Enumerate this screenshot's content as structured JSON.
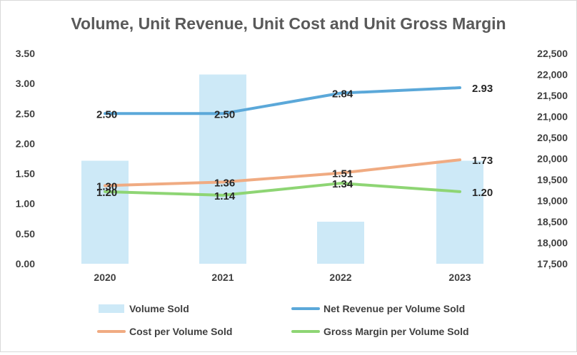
{
  "chart_data": {
    "type": "bar",
    "title": "Volume, Unit Revenue, Unit Cost and Unit Gross Margin",
    "categories": [
      "2020",
      "2021",
      "2022",
      "2023"
    ],
    "left_axis": {
      "ylim": [
        0,
        3.5
      ],
      "ticks": [
        "0.00",
        "0.50",
        "1.00",
        "1.50",
        "2.00",
        "2.50",
        "3.00",
        "3.50"
      ]
    },
    "right_axis": {
      "ylim": [
        17500,
        22500
      ],
      "ticks": [
        "17,500",
        "18,000",
        "18,500",
        "19,000",
        "19,500",
        "20,000",
        "20,500",
        "21,000",
        "21,500",
        "22,000",
        "22,500"
      ]
    },
    "series": [
      {
        "name": "Volume Sold",
        "kind": "bar",
        "axis": "right",
        "color": "#cde9f7",
        "values": [
          19950,
          22000,
          18500,
          19950
        ]
      },
      {
        "name": "Net Revenue per Volume Sold",
        "kind": "line",
        "axis": "left",
        "color": "#5ba8d9",
        "values": [
          2.5,
          2.5,
          2.84,
          2.93
        ],
        "labels": [
          "2.50",
          "2.50",
          "2.84",
          "2.93"
        ]
      },
      {
        "name": "Cost per Volume Sold",
        "kind": "line",
        "axis": "left",
        "color": "#f0ab82",
        "values": [
          1.3,
          1.36,
          1.51,
          1.73
        ],
        "labels": [
          "1.30",
          "1.36",
          "1.51",
          "1.73"
        ]
      },
      {
        "name": "Gross Margin per Volume Sold",
        "kind": "line",
        "axis": "left",
        "color": "#8ed574",
        "values": [
          1.2,
          1.14,
          1.34,
          1.2
        ],
        "labels": [
          "1.20",
          "1.14",
          "1.34",
          "1.20"
        ]
      }
    ],
    "grid": false,
    "legend_position": "bottom"
  }
}
